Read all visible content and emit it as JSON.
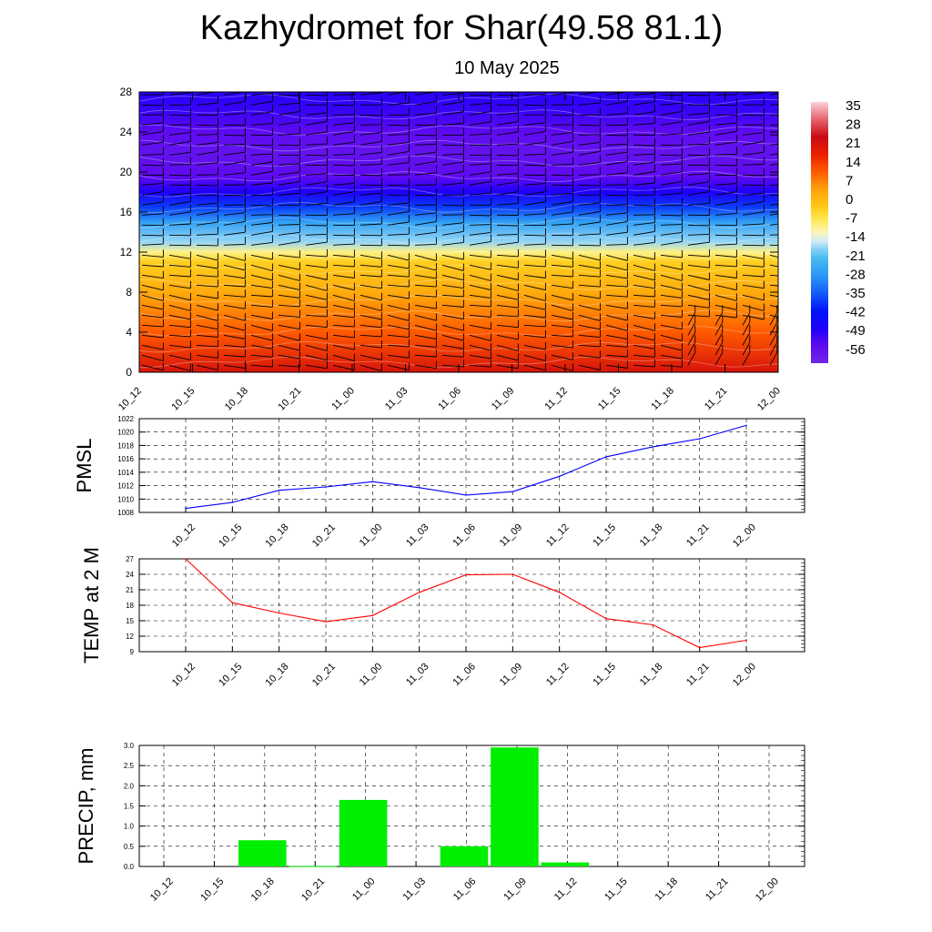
{
  "header": {
    "title": "Kazhydromet for Shar(49.58 81.1)",
    "subtitle": "10 May 2025"
  },
  "time_labels": [
    "10_12",
    "10_15",
    "10_18",
    "10_21",
    "11_00",
    "11_03",
    "11_06",
    "11_09",
    "11_12",
    "11_15",
    "11_18",
    "11_21",
    "12_00"
  ],
  "colors": {
    "pmsl_line": "#0000ff",
    "temp_line": "#ff0000",
    "precip_bar": "#00ee00",
    "grid": "#000000"
  },
  "chart_data": [
    {
      "type": "heatmap",
      "title": "",
      "xlabel": "",
      "ylabel": "",
      "y_ticks": [
        0,
        4,
        8,
        12,
        16,
        20,
        24,
        28
      ],
      "ylim": [
        0,
        28
      ],
      "colorbar_labels": [
        35,
        28,
        21,
        14,
        7,
        0,
        -7,
        -14,
        -21,
        -28,
        -35,
        -42,
        -49,
        -56
      ],
      "colorbar_range": [
        -63,
        42
      ],
      "profile": {
        "level": [
          0,
          4,
          8,
          11,
          12,
          13,
          15,
          16.5,
          18,
          19.5,
          22,
          24,
          26,
          28
        ],
        "value": [
          25,
          14,
          5,
          -1,
          -8,
          -16,
          -26,
          -38,
          -49,
          -56,
          -58,
          -56,
          -52,
          -50
        ]
      },
      "wind_barbs": "shown"
    },
    {
      "type": "line",
      "ylabel": "PMSL",
      "y_ticks": [
        1008,
        1010,
        1012,
        1014,
        1016,
        1018,
        1020,
        1022
      ],
      "ylim": [
        1008,
        1022
      ],
      "grid": true,
      "series": [
        {
          "values": [
            1008.6,
            1009.5,
            1011.3,
            1011.8,
            1012.6,
            1011.7,
            1010.6,
            1011.1,
            1013.4,
            1016.3,
            1017.8,
            1019.0,
            1021.0
          ]
        }
      ]
    },
    {
      "type": "line",
      "ylabel": "TEMP at 2 M",
      "y_ticks": [
        9,
        12,
        15,
        18,
        21,
        24,
        27
      ],
      "ylim": [
        9,
        27
      ],
      "grid": true,
      "series": [
        {
          "values": [
            27.0,
            18.5,
            16.5,
            14.8,
            16.0,
            20.5,
            23.9,
            24.0,
            20.5,
            15.4,
            14.2,
            9.8,
            11.2
          ]
        }
      ]
    },
    {
      "type": "bar",
      "ylabel": "PRECIP, mm",
      "y_ticks": [
        "0.0",
        "0.5",
        "1.0",
        "1.5",
        "2.0",
        "2.5",
        "3.0"
      ],
      "ylim": [
        0,
        3
      ],
      "grid": true,
      "values": [
        0,
        0,
        0.65,
        0.01,
        1.65,
        0,
        0.5,
        2.95,
        0.1,
        0,
        0,
        0,
        0
      ]
    }
  ]
}
